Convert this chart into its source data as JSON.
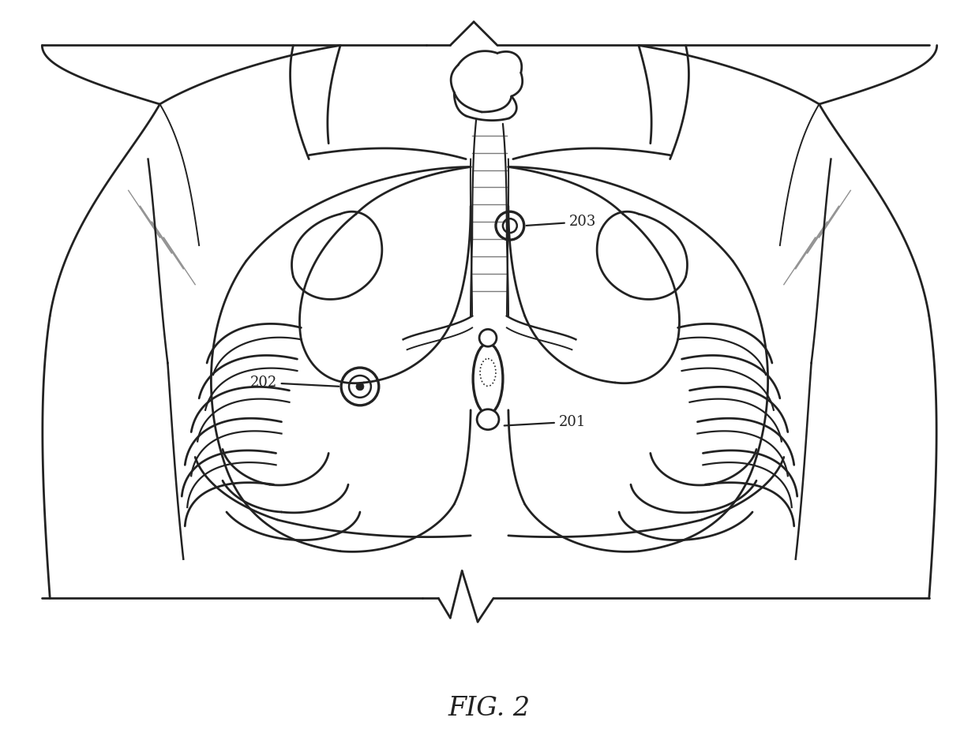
{
  "bg_color": "#ffffff",
  "lc": "#222222",
  "lw": 2.0,
  "fig_label": "FIG. 2",
  "label_201": "201",
  "label_202": "202",
  "label_203": "203",
  "label_fontsize": 13,
  "fig_fontsize": 24
}
